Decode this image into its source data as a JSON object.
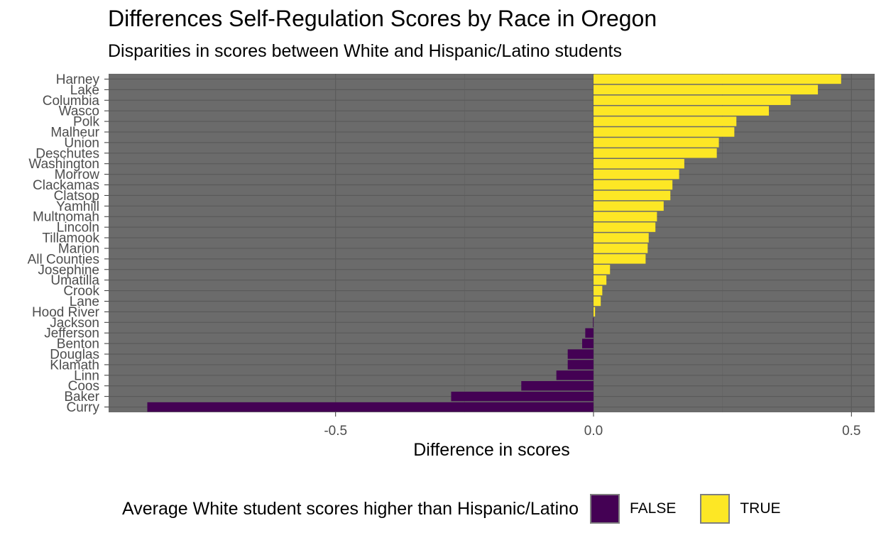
{
  "title": "Differences Self-Regulation Scores by Race in Oregon",
  "subtitle": "Disparities in scores between White and Hispanic/Latino students",
  "colors": {
    "panel_background": "#6b6b6b",
    "grid_major": "#5a5a5a",
    "grid_minor": "#646464",
    "bar_true": "#FDE725",
    "bar_false": "#440154",
    "bar_outline": "#7f7f7f"
  },
  "chart_data": {
    "type": "bar",
    "orientation": "horizontal",
    "title": "Differences Self-Regulation Scores by Race in Oregon",
    "subtitle": "Disparities in scores between White and Hispanic/Latino students",
    "xlabel": "Difference in scores",
    "ylabel": "",
    "xlim": [
      -0.94,
      0.545
    ],
    "xticks": [
      -0.5,
      0.0,
      0.5
    ],
    "xtick_labels": [
      "-0.5",
      "0.0",
      "0.5"
    ],
    "grid": true,
    "categories": [
      "Harney",
      "Lake",
      "Columbia",
      "Wasco",
      "Polk",
      "Malheur",
      "Union",
      "Deschutes",
      "Washington",
      "Morrow",
      "Clackamas",
      "Clatsop",
      "Yamhill",
      "Multnomah",
      "Lincoln",
      "Tillamook",
      "Marion",
      "All Counties",
      "Josephine",
      "Umatilla",
      "Crook",
      "Lane",
      "Hood River",
      "Jackson",
      "Jefferson",
      "Benton",
      "Douglas",
      "Klamath",
      "Linn",
      "Coos",
      "Baker",
      "Curry"
    ],
    "values": [
      0.48,
      0.435,
      0.382,
      0.34,
      0.277,
      0.273,
      0.243,
      0.239,
      0.176,
      0.166,
      0.153,
      0.149,
      0.136,
      0.123,
      0.12,
      0.107,
      0.105,
      0.101,
      0.032,
      0.025,
      0.017,
      0.014,
      0.003,
      -0.001,
      -0.016,
      -0.022,
      -0.05,
      -0.05,
      -0.072,
      -0.14,
      -0.276,
      -0.865
    ],
    "fill_variable": "Average White student scores higher than Hispanic/Latino",
    "legend": {
      "title": "Average White student scores higher than Hispanic/Latino",
      "position": "bottom",
      "items": [
        {
          "label": "FALSE",
          "color": "#440154"
        },
        {
          "label": "TRUE",
          "color": "#FDE725"
        }
      ]
    }
  }
}
